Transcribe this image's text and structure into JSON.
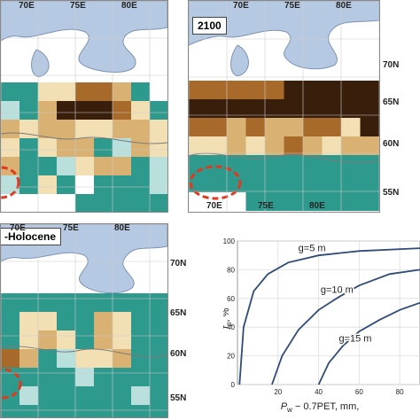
{
  "colors": {
    "water": "#b6c9e2",
    "teal": "#2e9a8e",
    "lightteal": "#b9e0dc",
    "beige": "#f2dfb4",
    "tan": "#d9b172",
    "brown": "#a86a2a",
    "darkbrown": "#3a1e0c",
    "ellipse": "#e03a1e",
    "curve": "#2e4b7a"
  },
  "panels": {
    "top_left": {
      "lon_labels": [
        "70E",
        "75E",
        "80E"
      ],
      "lat_labels": []
    },
    "top_right": {
      "title": "2100",
      "lon_labels_top": [
        "70E",
        "75E",
        "80E"
      ],
      "lon_labels_bottom": [
        "70E",
        "75E",
        "80E"
      ],
      "lat_labels": [
        "70N",
        "65N",
        "60N",
        "55N"
      ]
    },
    "bottom_left": {
      "title": "-Holocene",
      "lon_labels": [
        "70E",
        "75E",
        "80E"
      ],
      "lat_labels": [
        "70N",
        "65N",
        "60N",
        "55N"
      ]
    }
  },
  "chart_data": {
    "type": "line",
    "ylabel_main": "f",
    "ylabel_sub": "p",
    "ylabel_tail": ", %",
    "xlabel_main": "P",
    "xlabel_sub": "w",
    "xlabel_tail": " − 0.7PET,  mm,",
    "x_ticks": [
      "20",
      "40",
      "60",
      "80"
    ],
    "y_ticks": [
      "0",
      "20",
      "40",
      "60",
      "80",
      "100"
    ],
    "xlim": [
      0,
      90
    ],
    "ylim": [
      0,
      100
    ],
    "series": [
      {
        "name": "g=5 m",
        "points": [
          [
            1,
            0
          ],
          [
            3,
            40
          ],
          [
            8,
            65
          ],
          [
            15,
            77
          ],
          [
            25,
            85
          ],
          [
            40,
            90
          ],
          [
            60,
            93
          ],
          [
            90,
            95
          ]
        ]
      },
      {
        "name": "g=10 m",
        "points": [
          [
            17,
            0
          ],
          [
            22,
            20
          ],
          [
            30,
            38
          ],
          [
            40,
            52
          ],
          [
            50,
            61
          ],
          [
            60,
            69
          ],
          [
            75,
            77
          ],
          [
            90,
            80
          ]
        ]
      },
      {
        "name": "g=15 m",
        "points": [
          [
            40,
            0
          ],
          [
            45,
            15
          ],
          [
            52,
            27
          ],
          [
            60,
            37
          ],
          [
            70,
            45
          ],
          [
            80,
            52
          ],
          [
            90,
            57
          ]
        ]
      }
    ]
  }
}
